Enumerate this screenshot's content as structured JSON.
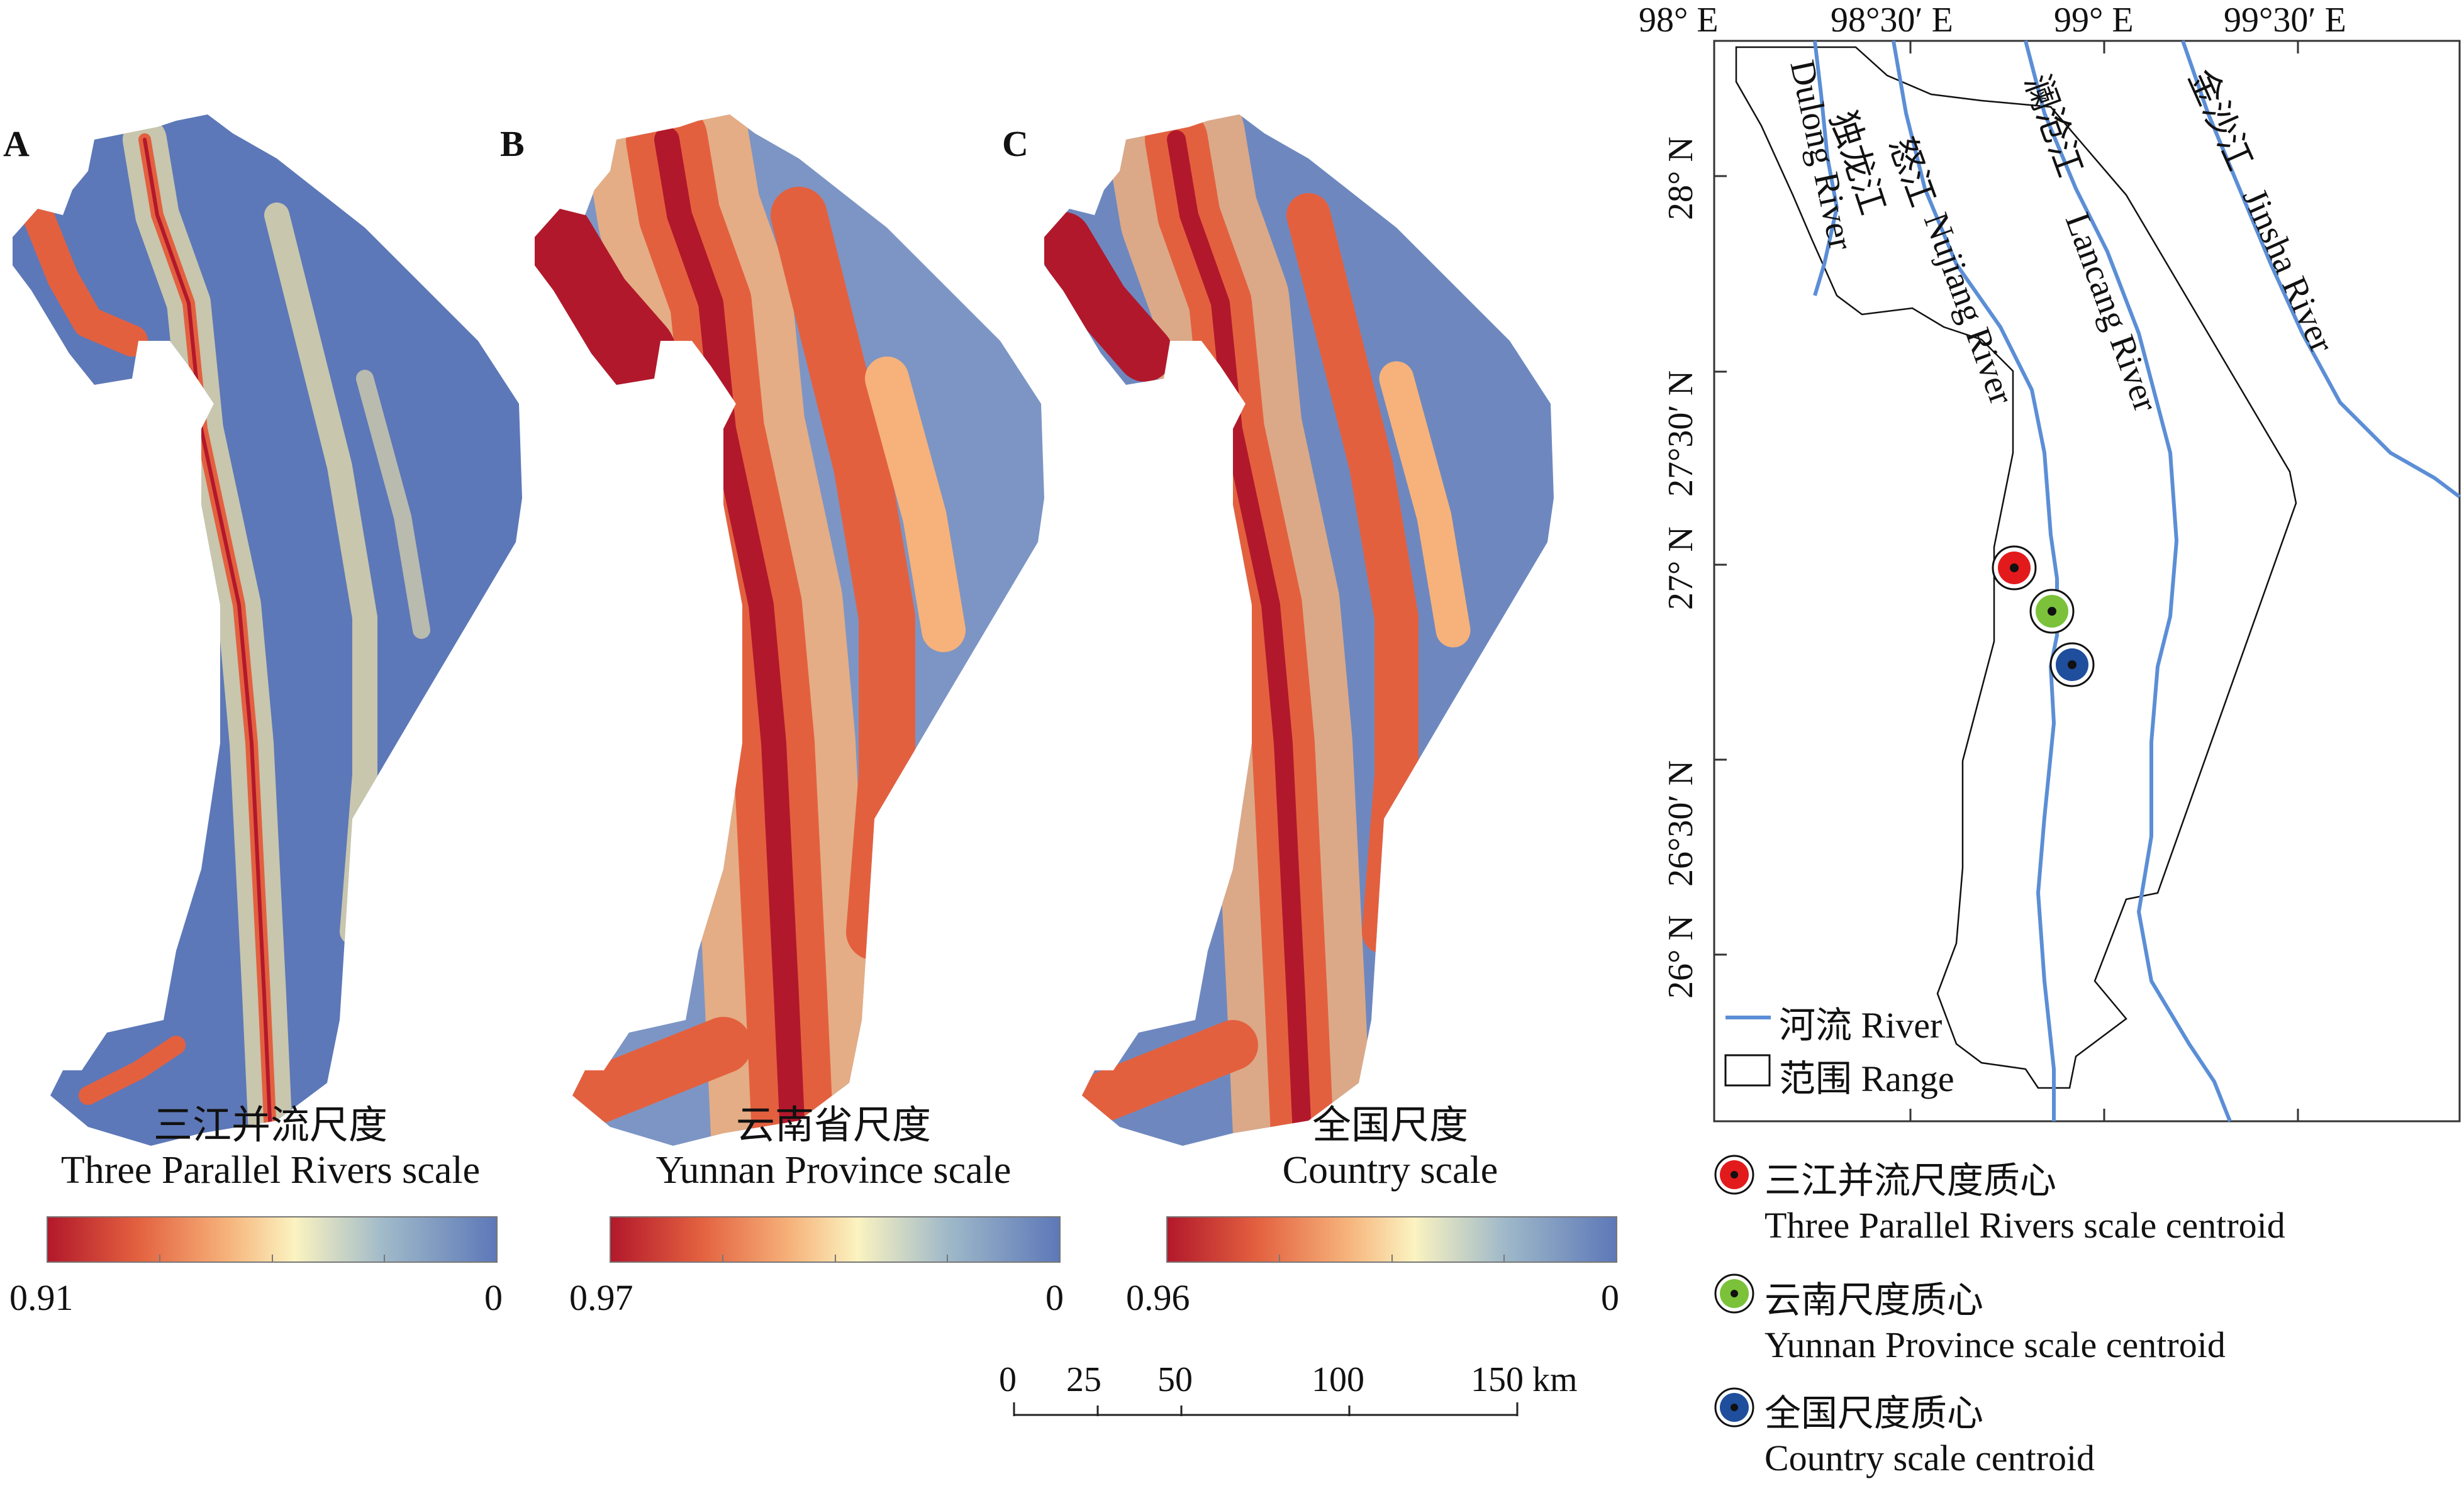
{
  "panels": [
    {
      "letter": "A",
      "title_cn": "三江并流尺度",
      "title_en": "Three Parallel Rivers scale",
      "max": "0.91",
      "min": "0"
    },
    {
      "letter": "B",
      "title_cn": "云南省尺度",
      "title_en": "Yunnan Province scale",
      "max": "0.97",
      "min": "0"
    },
    {
      "letter": "C",
      "title_cn": "全国尺度",
      "title_en": "Country scale",
      "max": "0.96",
      "min": "0"
    }
  ],
  "colormap": [
    "#b2182b",
    "#e3603f",
    "#f6b27a",
    "#fbf3c0",
    "#9fb9c9",
    "#5d78b8"
  ],
  "scalebar": {
    "ticks": [
      "0",
      "25",
      "50",
      "100",
      "150 km"
    ]
  },
  "locator": {
    "lon_labels": [
      "98° E",
      "98°30′ E",
      "99° E",
      "99°30′ E"
    ],
    "lat_labels": [
      "28° N",
      "27°30′ N",
      "27° N",
      "26°30′ N",
      "26° N"
    ],
    "rivers": [
      {
        "cn": "独龙江",
        "en": "Dulong River"
      },
      {
        "cn": "怒江",
        "en": "Nujiang River"
      },
      {
        "cn": "澜沧江",
        "en": "Lancang River"
      },
      {
        "cn": "金沙江",
        "en": "Jinsha River"
      }
    ],
    "legend": {
      "river": "河流 River",
      "range": "范围 Range"
    },
    "river_color": "#5b8ed6"
  },
  "centroids": [
    {
      "cn": "三江并流尺度质心",
      "en": "Three Parallel Rivers scale centroid",
      "color": "#e31a1c"
    },
    {
      "cn": "云南尺度质心",
      "en": "Yunnan Province scale centroid",
      "color": "#7bc23a"
    },
    {
      "cn": "全国尺度质心",
      "en": "Country scale centroid",
      "color": "#1f4e9c"
    }
  ]
}
